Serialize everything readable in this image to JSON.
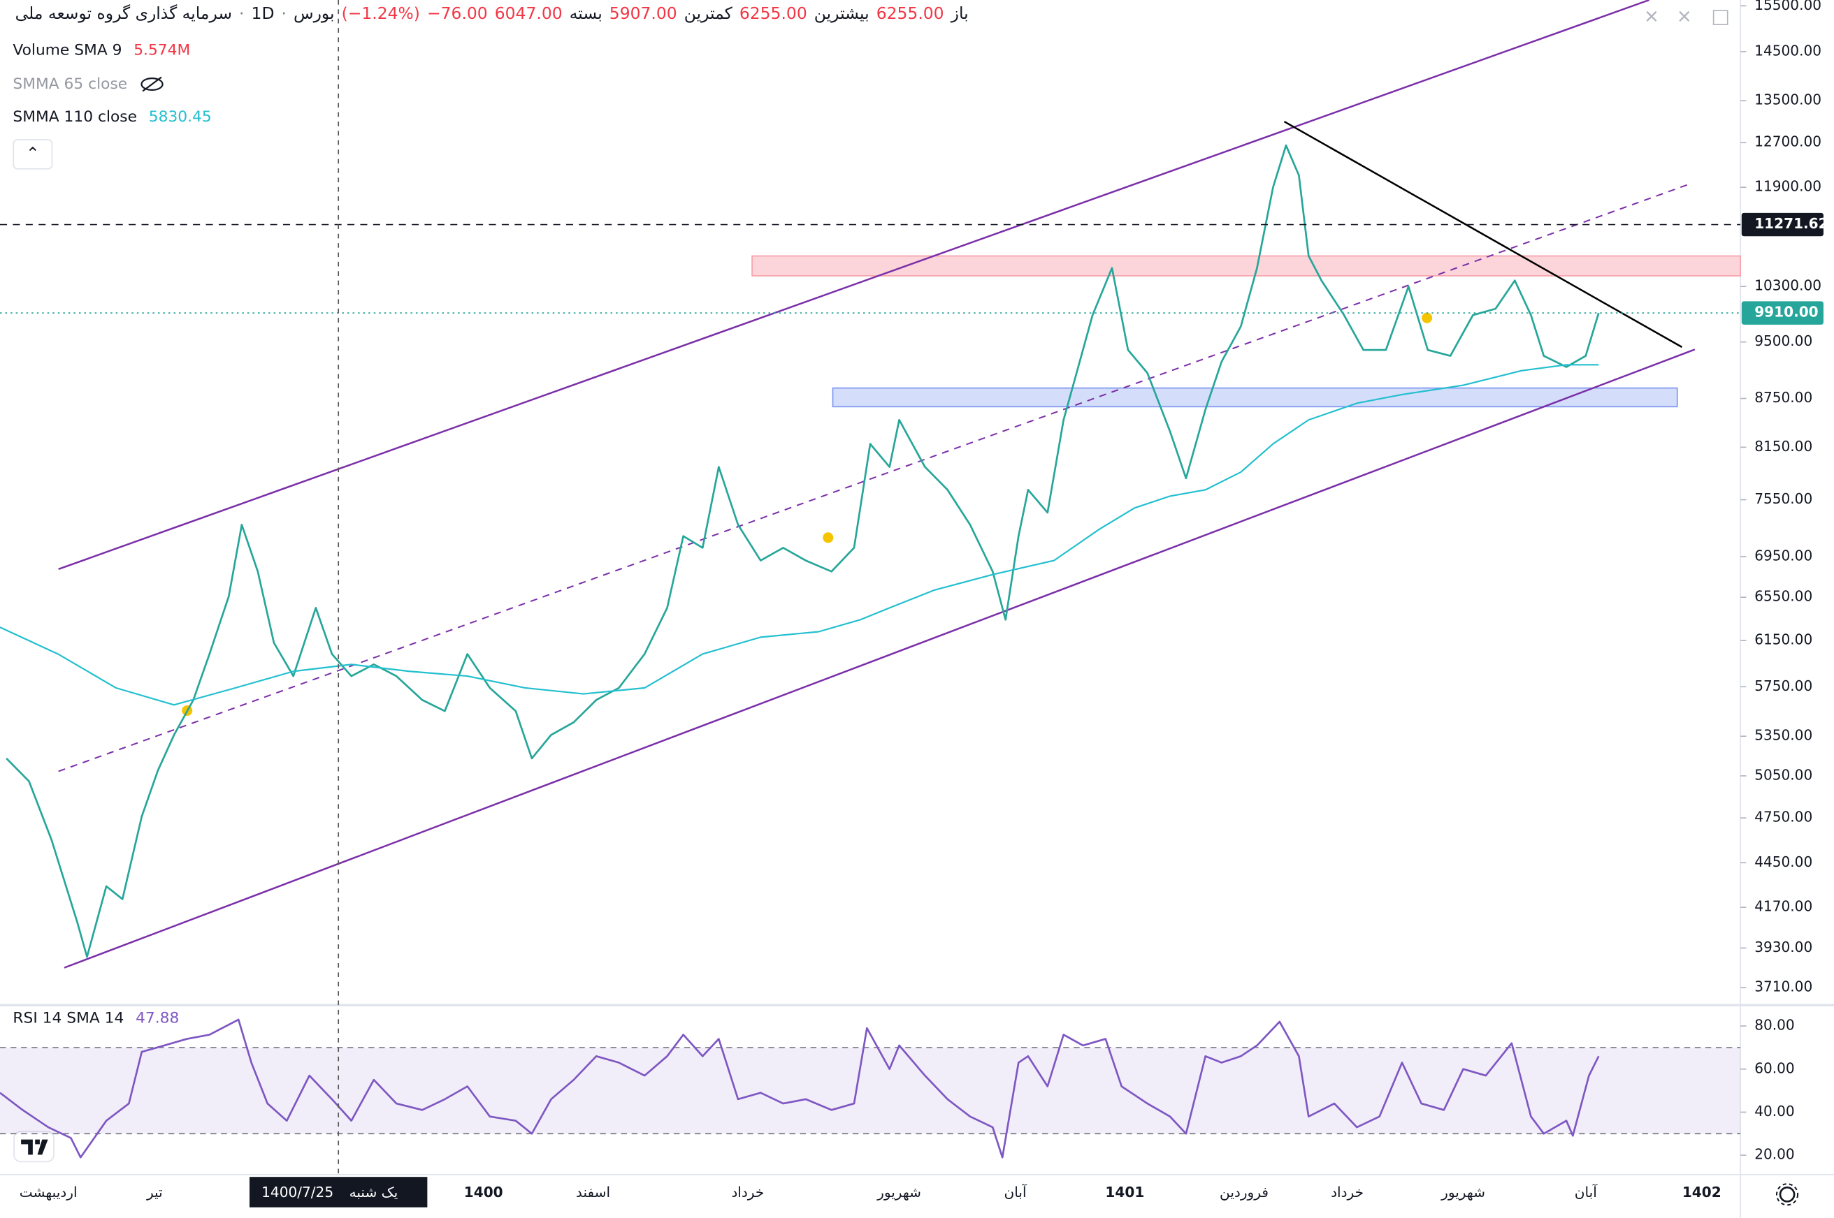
{
  "chart_data": [
    {
      "type": "line",
      "symbol": "سرمایه گذاری گروه توسعه ملی",
      "interval": "1D",
      "exchange": "بورس",
      "ohlc": [
        {
          "name": "باز",
          "value": 6255,
          "label": "6255.00"
        },
        {
          "name": "بیشترین",
          "value": 6255,
          "label": "6255.00"
        },
        {
          "name": "کمترین",
          "value": 5907,
          "label": "5907.00"
        },
        {
          "name": "بسته",
          "value": 6047,
          "label": "6047.00"
        }
      ],
      "change": {
        "value": -76,
        "label": "−76.00"
      },
      "change_pct": {
        "value": -1.24,
        "label": "(−1.24%)"
      },
      "indicators": [
        {
          "name": "Volume SMA 9",
          "value": 5574000,
          "label": "5.574M"
        },
        {
          "name": "SMMA 65 close"
        }
      ],
      "log_scale": true,
      "grid": false,
      "xlim": [
        0,
        540
      ],
      "ylim": [
        3710,
        15500
      ],
      "yticks": [
        {
          "value": 3710,
          "label": "3710.00"
        },
        {
          "value": 3930,
          "label": "3930.00"
        },
        {
          "value": 4170,
          "label": "4170.00"
        },
        {
          "value": 4450,
          "label": "4450.00"
        },
        {
          "value": 4750,
          "label": "4750.00"
        },
        {
          "value": 5050,
          "label": "5050.00"
        },
        {
          "value": 5350,
          "label": "5350.00"
        },
        {
          "value": 5750,
          "label": "5750.00"
        },
        {
          "value": 6150,
          "label": "6150.00"
        },
        {
          "value": 6550,
          "label": "6550.00"
        },
        {
          "value": 6950,
          "label": "6950.00"
        },
        {
          "value": 7550,
          "label": "7550.00"
        },
        {
          "value": 8150,
          "label": "8150.00"
        },
        {
          "value": 8750,
          "label": "8750.00"
        },
        {
          "value": 9500,
          "label": "9500.00"
        },
        {
          "value": 10300,
          "label": "10300.00"
        },
        {
          "value": 11900,
          "label": "11900.00"
        },
        {
          "value": 12700,
          "label": "12700.00"
        },
        {
          "value": 13500,
          "label": "13500.00"
        },
        {
          "value": 14500,
          "label": "14500.00"
        },
        {
          "value": 15500,
          "label": "15500.00"
        }
      ],
      "xticks": [
        {
          "value": 15,
          "label": "اردیبهشت"
        },
        {
          "value": 48,
          "label": "تیر"
        },
        {
          "value": 150,
          "label": "1400"
        },
        {
          "value": 184,
          "label": "اسفند"
        },
        {
          "value": 232,
          "label": "خرداد"
        },
        {
          "value": 279,
          "label": "شهریور"
        },
        {
          "value": 315,
          "label": "آبان"
        },
        {
          "value": 349,
          "label": "1401"
        },
        {
          "value": 386,
          "label": "فروردین"
        },
        {
          "value": 418,
          "label": "خرداد"
        },
        {
          "value": 454,
          "label": "شهریور"
        },
        {
          "value": 492,
          "label": "آبان"
        },
        {
          "value": 528,
          "label": "1402"
        }
      ],
      "crosshair": {
        "x": 105,
        "date": "1400/7/25",
        "weekday": "یک شنبه"
      },
      "price_lines": [
        {
          "value": 11271.62,
          "color": "#131722",
          "style": "dashed"
        },
        {
          "value": 9910,
          "label": "9910.00",
          "color": "#26a69a",
          "style": "dotted"
        }
      ],
      "series": [
        {
          "color": "#26a69a",
          "x": [
            2,
            9,
            16,
            24,
            27,
            33,
            38,
            44,
            49,
            54,
            60,
            65,
            71,
            75,
            80,
            85,
            91,
            98,
            103,
            109,
            116,
            123,
            131,
            138,
            145,
            152,
            160,
            165,
            171,
            178,
            185,
            192,
            200,
            207,
            212,
            218,
            223,
            229,
            236,
            243,
            250,
            258,
            265,
            270,
            276,
            279,
            287,
            294,
            301,
            308,
            312,
            316,
            319,
            325,
            330,
            334,
            339,
            345,
            350,
            356,
            363,
            368,
            374,
            379,
            385,
            390,
            395,
            399,
            403,
            406,
            410,
            417,
            423,
            430,
            437,
            443,
            450,
            457,
            464,
            470,
            475,
            479,
            486,
            492,
            496
          ],
          "values": [
            5180,
            5010,
            4600,
            4080,
            3880,
            4300,
            4220,
            4760,
            5090,
            5360,
            5640,
            6030,
            6560,
            7280,
            6800,
            6130,
            5840,
            6450,
            6030,
            5840,
            5940,
            5840,
            5640,
            5550,
            6030,
            5740,
            5550,
            5180,
            5360,
            5460,
            5640,
            5740,
            6030,
            6450,
            7160,
            7040,
            7920,
            7280,
            6910,
            7040,
            6910,
            6800,
            7040,
            8190,
            7920,
            8480,
            7920,
            7660,
            7280,
            6800,
            6340,
            7160,
            7660,
            7410,
            8480,
            9080,
            9880,
            10580,
            9390,
            9080,
            8340,
            7790,
            8610,
            9230,
            9720,
            10580,
            11900,
            12650,
            12110,
            10770,
            10390,
            9880,
            9390,
            9390,
            10300,
            9390,
            9310,
            9880,
            9970,
            10390,
            9880,
            9310,
            9160,
            9310,
            9910
          ]
        },
        {
          "name": "SMMA 110 close",
          "color": "#22bfcf",
          "last": 5830.45,
          "x": [
            0,
            18,
            36,
            54,
            73,
            91,
            109,
            127,
            145,
            163,
            181,
            200,
            218,
            236,
            254,
            267,
            276,
            290,
            308,
            327,
            341,
            352,
            363,
            374,
            385,
            395,
            406,
            421,
            435,
            454,
            472,
            486,
            496
          ],
          "values": [
            6270,
            6030,
            5740,
            5600,
            5740,
            5880,
            5940,
            5880,
            5840,
            5740,
            5690,
            5740,
            6030,
            6180,
            6230,
            6340,
            6450,
            6620,
            6770,
            6910,
            7230,
            7460,
            7590,
            7660,
            7860,
            8190,
            8480,
            8690,
            8800,
            8920,
            9110,
            9190,
            9190
          ]
        }
      ]
    },
    {
      "type": "line",
      "title": "RSI 14 SMA 14",
      "value": 47.88,
      "ylim": [
        11,
        87
      ],
      "band": [
        30,
        70
      ],
      "band_color": "#7e57c2",
      "yticks": [
        {
          "value": 20,
          "label": "20.00"
        },
        {
          "value": 40,
          "label": "40.00"
        },
        {
          "value": 60,
          "label": "60.00"
        },
        {
          "value": 80,
          "label": "80.00"
        }
      ],
      "series": [
        {
          "color": "#7e57c2",
          "x": [
            0,
            7,
            15,
            22,
            25,
            33,
            40,
            44,
            51,
            58,
            65,
            74,
            78,
            83,
            89,
            96,
            103,
            109,
            116,
            123,
            131,
            138,
            145,
            152,
            160,
            165,
            171,
            178,
            185,
            192,
            200,
            207,
            212,
            218,
            223,
            229,
            236,
            243,
            250,
            258,
            265,
            269,
            276,
            279,
            287,
            294,
            301,
            308,
            311,
            316,
            319,
            325,
            330,
            336,
            343,
            348,
            356,
            363,
            368,
            374,
            379,
            385,
            390,
            397,
            403,
            406,
            414,
            421,
            428,
            435,
            441,
            448,
            454,
            461,
            469,
            475,
            479,
            486,
            488,
            493,
            496
          ],
          "values": [
            49,
            41,
            33,
            28,
            19,
            36,
            44,
            68,
            71,
            74,
            76,
            83,
            63,
            44,
            36,
            57,
            46,
            36,
            55,
            44,
            41,
            46,
            52,
            38,
            36,
            30,
            46,
            55,
            66,
            63,
            57,
            66,
            76,
            66,
            74,
            46,
            49,
            44,
            46,
            41,
            44,
            79,
            60,
            71,
            57,
            46,
            38,
            33,
            19,
            63,
            66,
            52,
            76,
            71,
            74,
            52,
            44,
            38,
            30,
            66,
            63,
            66,
            71,
            82,
            66,
            38,
            44,
            33,
            38,
            63,
            44,
            41,
            60,
            57,
            72,
            38,
            30,
            36,
            29,
            57,
            66
          ]
        }
      ]
    }
  ]
}
